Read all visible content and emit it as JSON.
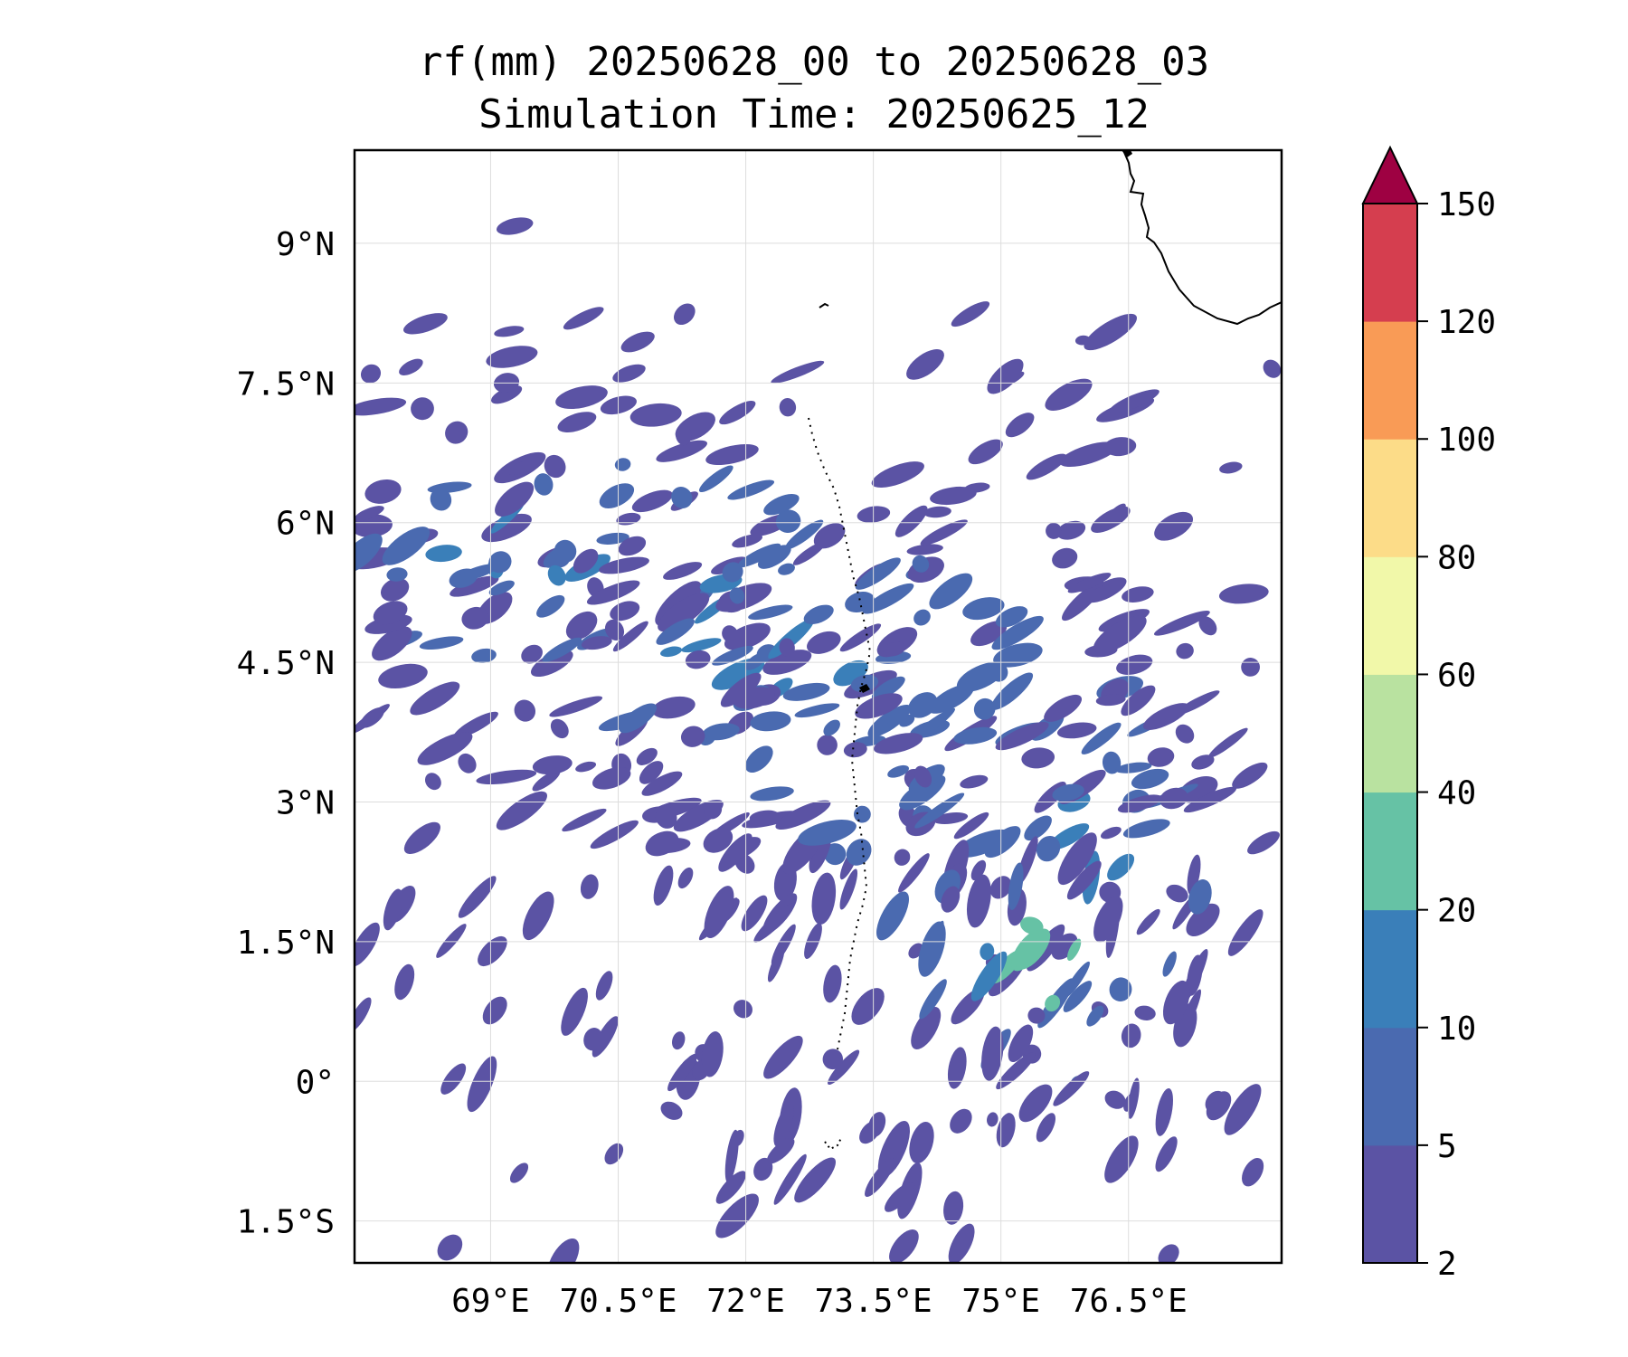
{
  "title": {
    "line1": "rf(mm) 20250628_00 to 20250628_03",
    "line2": "Simulation Time: 20250625_12"
  },
  "map": {
    "lon_range": [
      67.4,
      78.3
    ],
    "lat_range": [
      -1.95,
      10.0
    ],
    "lon_ticks": [
      {
        "value": 69.0,
        "label": "69°E"
      },
      {
        "value": 70.5,
        "label": "70.5°E"
      },
      {
        "value": 72.0,
        "label": "72°E"
      },
      {
        "value": 73.5,
        "label": "73.5°E"
      },
      {
        "value": 75.0,
        "label": "75°E"
      },
      {
        "value": 76.5,
        "label": "76.5°E"
      }
    ],
    "lat_ticks": [
      {
        "value": 9.0,
        "label": "9°N"
      },
      {
        "value": 7.5,
        "label": "7.5°N"
      },
      {
        "value": 6.0,
        "label": "6°N"
      },
      {
        "value": 4.5,
        "label": "4.5°N"
      },
      {
        "value": 3.0,
        "label": "3°N"
      },
      {
        "value": 1.5,
        "label": "1.5°N"
      },
      {
        "value": 0.0,
        "label": "0°"
      },
      {
        "value": -1.5,
        "label": "1.5°S"
      }
    ],
    "gridlines": true
  },
  "colorbar": {
    "levels": [
      2,
      5,
      10,
      20,
      40,
      60,
      80,
      100,
      120,
      150
    ],
    "labels": [
      "2",
      "5",
      "10",
      "20",
      "40",
      "60",
      "80",
      "100",
      "120",
      "150"
    ],
    "colors": [
      "#5b53a4",
      "#4a6ab0",
      "#3a7fb9",
      "#66c2a5",
      "#b9e2a0",
      "#f1f8a9",
      "#fcdc88",
      "#f99b56",
      "#d53e4f"
    ],
    "extend_color": "#9e0142",
    "extend": "max"
  }
}
